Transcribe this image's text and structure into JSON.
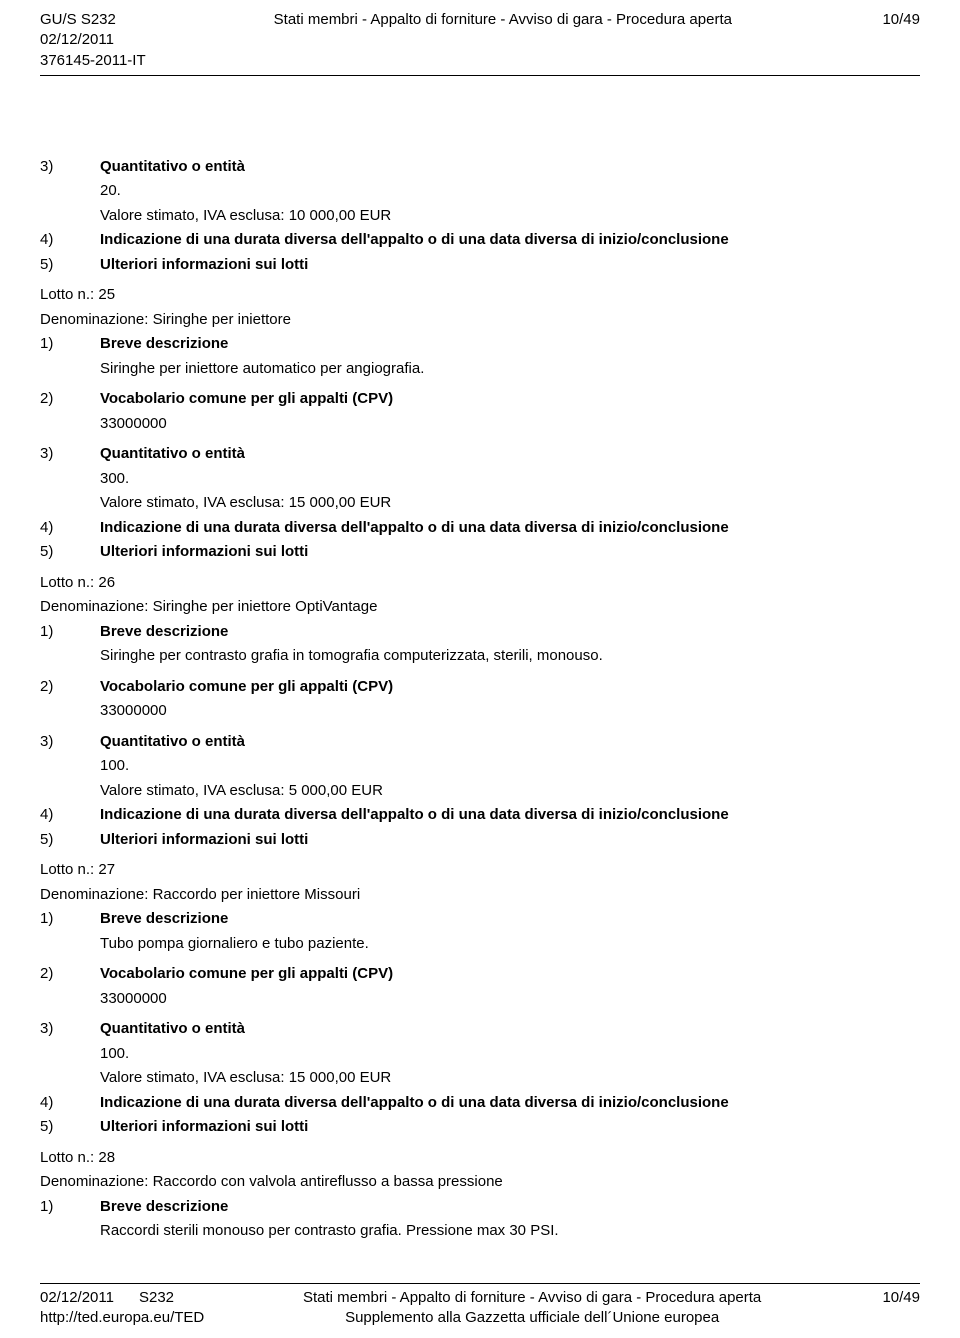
{
  "header": {
    "left_line1": "GU/S S232",
    "left_line2": "02/12/2011",
    "left_line3": "376145-2011-IT",
    "center": "Stati membri - Appalto di forniture - Avviso di gara - Procedura aperta",
    "right": "10/49"
  },
  "body": {
    "r1_num": "3)",
    "r1_label": "Quantitativo o entità",
    "r1_val": "20.",
    "r1_val2": "Valore stimato, IVA esclusa: 10 000,00 EUR",
    "r2_num": "4)",
    "r2_label": "Indicazione di una durata diversa dell'appalto o di una data diversa di inizio/conclusione",
    "r3_num": "5)",
    "r3_label": "Ulteriori informazioni sui lotti",
    "lot25_num": "Lotto n.: 25",
    "lot25_denom": "Denominazione: Siringhe per iniettore",
    "lot25_1_num": "1)",
    "lot25_1_label": "Breve descrizione",
    "lot25_1_val": "Siringhe per iniettore automatico per angiografia.",
    "lot25_2_num": "2)",
    "lot25_2_label": "Vocabolario comune per gli appalti (CPV)",
    "lot25_2_val": "33000000",
    "lot25_3_num": "3)",
    "lot25_3_label": "Quantitativo o entità",
    "lot25_3_val": "300.",
    "lot25_3_val2": "Valore stimato, IVA esclusa: 15 000,00 EUR",
    "lot25_4_num": "4)",
    "lot25_4_label": "Indicazione di una durata diversa dell'appalto o di una data diversa di inizio/conclusione",
    "lot25_5_num": "5)",
    "lot25_5_label": "Ulteriori informazioni sui lotti",
    "lot26_num": "Lotto n.: 26",
    "lot26_denom": "Denominazione: Siringhe per iniettore OptiVantage",
    "lot26_1_num": "1)",
    "lot26_1_label": "Breve descrizione",
    "lot26_1_val": "Siringhe per contrasto grafia in tomografia computerizzata, sterili, monouso.",
    "lot26_2_num": "2)",
    "lot26_2_label": "Vocabolario comune per gli appalti (CPV)",
    "lot26_2_val": "33000000",
    "lot26_3_num": "3)",
    "lot26_3_label": "Quantitativo o entità",
    "lot26_3_val": "100.",
    "lot26_3_val2": "Valore stimato, IVA esclusa: 5 000,00 EUR",
    "lot26_4_num": "4)",
    "lot26_4_label": "Indicazione di una durata diversa dell'appalto o di una data diversa di inizio/conclusione",
    "lot26_5_num": "5)",
    "lot26_5_label": "Ulteriori informazioni sui lotti",
    "lot27_num": "Lotto n.: 27",
    "lot27_denom": "Denominazione: Raccordo per iniettore Missouri",
    "lot27_1_num": "1)",
    "lot27_1_label": "Breve descrizione",
    "lot27_1_val": "Tubo pompa giornaliero e tubo paziente.",
    "lot27_2_num": "2)",
    "lot27_2_label": "Vocabolario comune per gli appalti (CPV)",
    "lot27_2_val": "33000000",
    "lot27_3_num": "3)",
    "lot27_3_label": "Quantitativo o entità",
    "lot27_3_val": "100.",
    "lot27_3_val2": "Valore stimato, IVA esclusa: 15 000,00 EUR",
    "lot27_4_num": "4)",
    "lot27_4_label": "Indicazione di una durata diversa dell'appalto o di una data diversa di inizio/conclusione",
    "lot27_5_num": "5)",
    "lot27_5_label": "Ulteriori informazioni sui lotti",
    "lot28_num": "Lotto n.: 28",
    "lot28_denom": "Denominazione: Raccordo con valvola antireflusso a bassa pressione",
    "lot28_1_num": "1)",
    "lot28_1_label": "Breve descrizione",
    "lot28_1_val": "Raccordi sterili monouso per contrasto grafia. Pressione max 30 PSI."
  },
  "footer": {
    "left_line1": "02/12/2011",
    "left_line1b": "S232",
    "left_line2": "http://ted.europa.eu/TED",
    "center_line1": "Stati membri - Appalto di forniture - Avviso di gara - Procedura aperta",
    "center_line2": "Supplemento alla Gazzetta ufficiale dell´Unione europea",
    "right": "10/49"
  }
}
